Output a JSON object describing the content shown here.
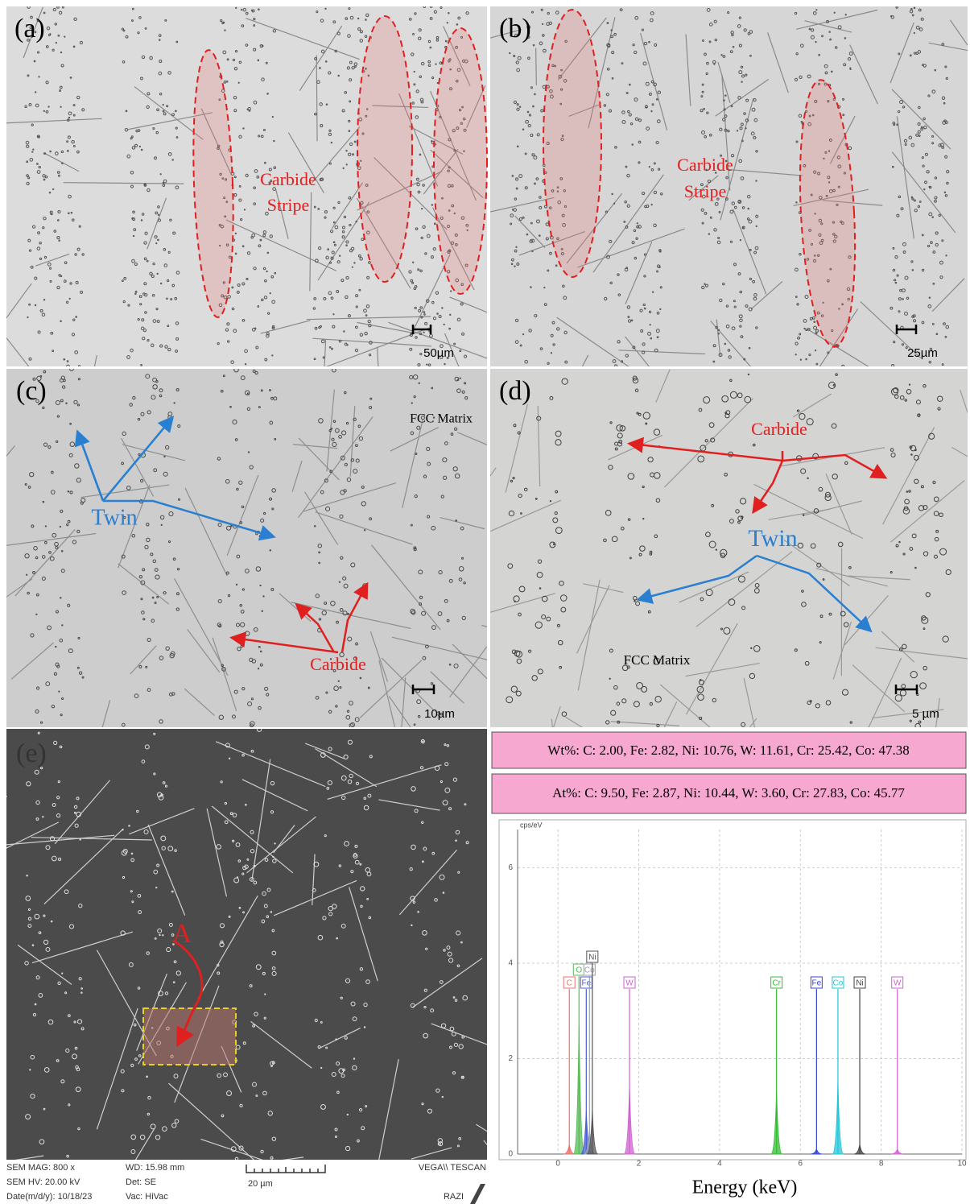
{
  "panel_a": {
    "label": "(a)",
    "annotation": [
      "Carbide",
      "Stripe"
    ],
    "scale_bar": "50µm"
  },
  "panel_b": {
    "label": "(b)",
    "annotation": [
      "Carbide",
      "Stripe"
    ],
    "scale_bar": "25µm"
  },
  "panel_c": {
    "label": "(c)",
    "matrix": "FCC Matrix",
    "twin": "Twin",
    "carbide": "Carbide",
    "scale_bar": "10µm"
  },
  "panel_d": {
    "label": "(d)",
    "carbide": "Carbide",
    "twin": "Twin",
    "matrix": "FCC Matrix",
    "scale_bar": "5 µm"
  },
  "panel_e": {
    "label": "(e)",
    "marker": "A",
    "info": [
      "SEM MAG: 800 x",
      "SEM HV: 20.00 kV",
      "Date(m/d/y): 10/18/23",
      "WD: 15.98 mm",
      "Det: SE",
      "Vac: HiVac",
      "20 µm",
      "VEGA\\\\ TESCAN",
      "RAZI"
    ]
  },
  "eds": {
    "wt_text": "Wt%: C: 2.00, Fe: 2.82, Ni: 10.76, W: 11.61, Cr: 25.42, Co: 47.38",
    "at_text": "At%: C: 9.50, Fe: 2.87, Ni: 10.44, W: 3.60, Cr: 27.83, Co: 45.77",
    "spectrum": {
      "y_unit": "cps/eV",
      "x_label": "Energy (keV)",
      "xlim": [
        -1,
        10
      ],
      "ylim": [
        0,
        6.8
      ],
      "xticks": [
        0,
        2,
        4,
        6,
        8,
        10
      ],
      "yticks": [
        0,
        2,
        4,
        6
      ],
      "peaks": [
        {
          "element": "C",
          "energy": 0.28,
          "height": 0.2,
          "color": "#e8736e"
        },
        {
          "element": "O",
          "energy": 0.52,
          "height": 2.7,
          "color": "#55bb55"
        },
        {
          "element": "Fe",
          "energy": 0.7,
          "height": 0.9,
          "color": "#4a5fd0"
        },
        {
          "element": "Co",
          "energy": 0.78,
          "height": 0.5,
          "color": "#9aa0b0"
        },
        {
          "element": "Ni",
          "energy": 0.85,
          "height": 0.9,
          "color": "#555555"
        },
        {
          "element": "W",
          "energy": 1.77,
          "height": 1.4,
          "color": "#d060d0"
        },
        {
          "element": "Cr",
          "energy": 5.41,
          "height": 1.3,
          "color": "#33bb33"
        },
        {
          "element": "Fe",
          "energy": 6.4,
          "height": 0.1,
          "color": "#3344cc"
        },
        {
          "element": "Co",
          "energy": 6.93,
          "height": 1.5,
          "color": "#22c4d8"
        },
        {
          "element": "Ni",
          "energy": 7.47,
          "height": 0.2,
          "color": "#444444"
        },
        {
          "element": "W",
          "energy": 8.4,
          "height": 0.1,
          "color": "#d060d0"
        }
      ]
    }
  }
}
